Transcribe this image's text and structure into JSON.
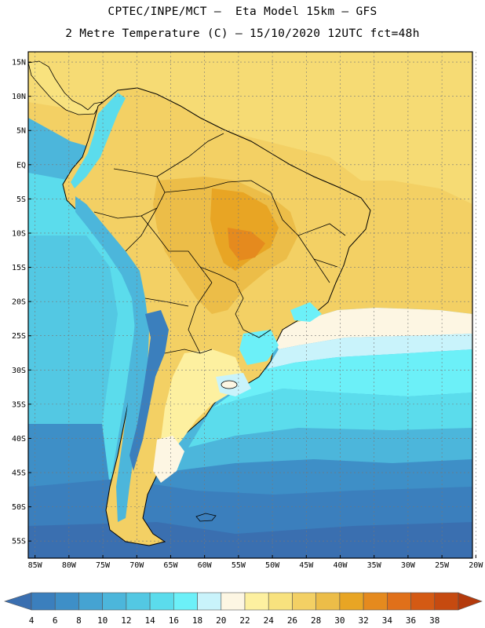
{
  "header": {
    "line1": "CPTEC/INPE/MCT –  Eta Model 15km – GFS",
    "line2": "2 Metre Temperature (C) – 15/10/2020 12UTC fct=48h"
  },
  "axes": {
    "lat_labels": [
      "15N",
      "10N",
      "5N",
      "EQ",
      "5S",
      "10S",
      "15S",
      "20S",
      "25S",
      "30S",
      "35S",
      "40S",
      "45S",
      "50S",
      "55S"
    ],
    "lon_labels": [
      "85W",
      "80W",
      "75W",
      "70W",
      "65W",
      "60W",
      "55W",
      "50W",
      "45W",
      "40W",
      "35W",
      "30W",
      "25W",
      "20W"
    ],
    "lat_values": [
      15,
      10,
      5,
      0,
      -5,
      -10,
      -15,
      -20,
      -25,
      -30,
      -35,
      -40,
      -45,
      -50,
      -55
    ],
    "lon_values": [
      -85,
      -80,
      -75,
      -70,
      -65,
      -60,
      -55,
      -50,
      -45,
      -40,
      -35,
      -30,
      -25,
      -20
    ],
    "lat_range": [
      -57.5,
      16.5
    ],
    "lon_range": [
      -86,
      -20.5
    ]
  },
  "legend": {
    "labels": [
      "4",
      "6",
      "8",
      "10",
      "12",
      "14",
      "16",
      "18",
      "20",
      "22",
      "24",
      "26",
      "28",
      "30",
      "32",
      "34",
      "36",
      "38"
    ],
    "colors": [
      "#3a6fb0",
      "#3b7fbd",
      "#3e8fc7",
      "#45a3d2",
      "#4cb6db",
      "#53c8e3",
      "#5bdcec",
      "#6cf0f8",
      "#c9f3fb",
      "#fdf6e3",
      "#fdf0a0",
      "#f8e27e",
      "#f3d064",
      "#ecbd48",
      "#e8a524",
      "#e58a1e",
      "#e0701a",
      "#d45a14",
      "#c64a10",
      "#b43a0c"
    ]
  },
  "colors": {
    "land_warm": "#f3d064",
    "land_hot": "#ecbd48",
    "ocean_warm": "#f3d064",
    "ocean_mid": "#5bdcec",
    "ocean_cold": "#3b7fbd"
  }
}
